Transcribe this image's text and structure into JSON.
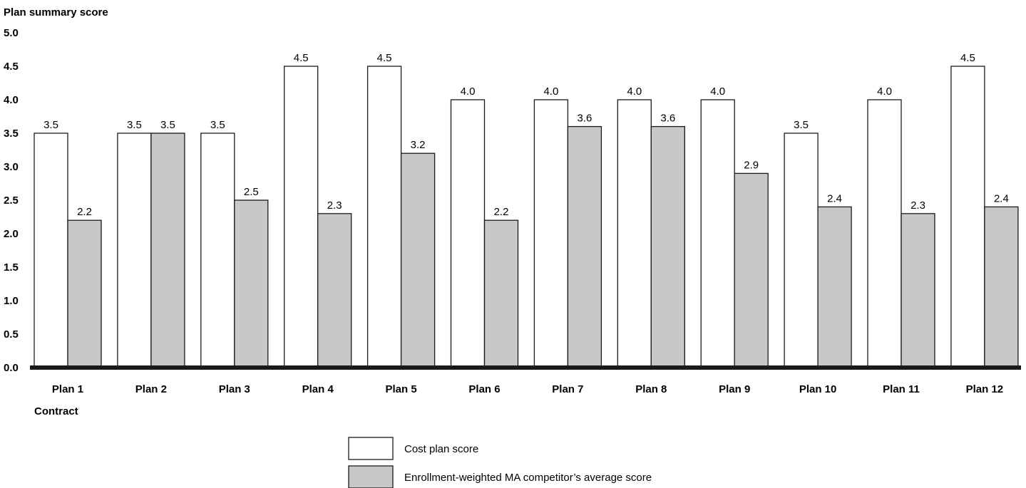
{
  "chart_data": {
    "type": "bar",
    "ylabel": "Plan summary score",
    "xlabel": "Contract",
    "ylim": [
      0,
      5
    ],
    "yticks": [
      "0.0",
      "0.5",
      "1.0",
      "1.5",
      "2.0",
      "2.5",
      "3.0",
      "3.5",
      "4.0",
      "4.5",
      "5.0"
    ],
    "grid": false,
    "legend_placement": "bottom-center",
    "categories": [
      "Plan 1",
      "Plan 2",
      "Plan 3",
      "Plan 4",
      "Plan 5",
      "Plan 6",
      "Plan 7",
      "Plan 8",
      "Plan 9",
      "Plan 10",
      "Plan 11",
      "Plan 12"
    ],
    "series": [
      {
        "name": "Cost plan score",
        "color": "#ffffff",
        "values": [
          3.5,
          3.5,
          3.5,
          4.5,
          4.5,
          4.0,
          4.0,
          4.0,
          4.0,
          3.5,
          4.0,
          4.5
        ],
        "labels": [
          "3.5",
          "3.5",
          "3.5",
          "4.5",
          "4.5",
          "4.0",
          "4.0",
          "4.0",
          "4.0",
          "3.5",
          "4.0",
          "4.5"
        ]
      },
      {
        "name": "Enrollment-weighted MA competitor’s average score",
        "color": "#c8c8ca",
        "values": [
          2.2,
          3.5,
          2.5,
          2.3,
          3.2,
          2.2,
          3.6,
          3.6,
          2.9,
          2.4,
          2.3,
          2.4
        ],
        "labels": [
          "2.2",
          "3.5",
          "2.5",
          "2.3",
          "3.2",
          "2.2",
          "3.6",
          "3.6",
          "2.9",
          "2.4",
          "2.3",
          "2.4"
        ]
      }
    ]
  }
}
